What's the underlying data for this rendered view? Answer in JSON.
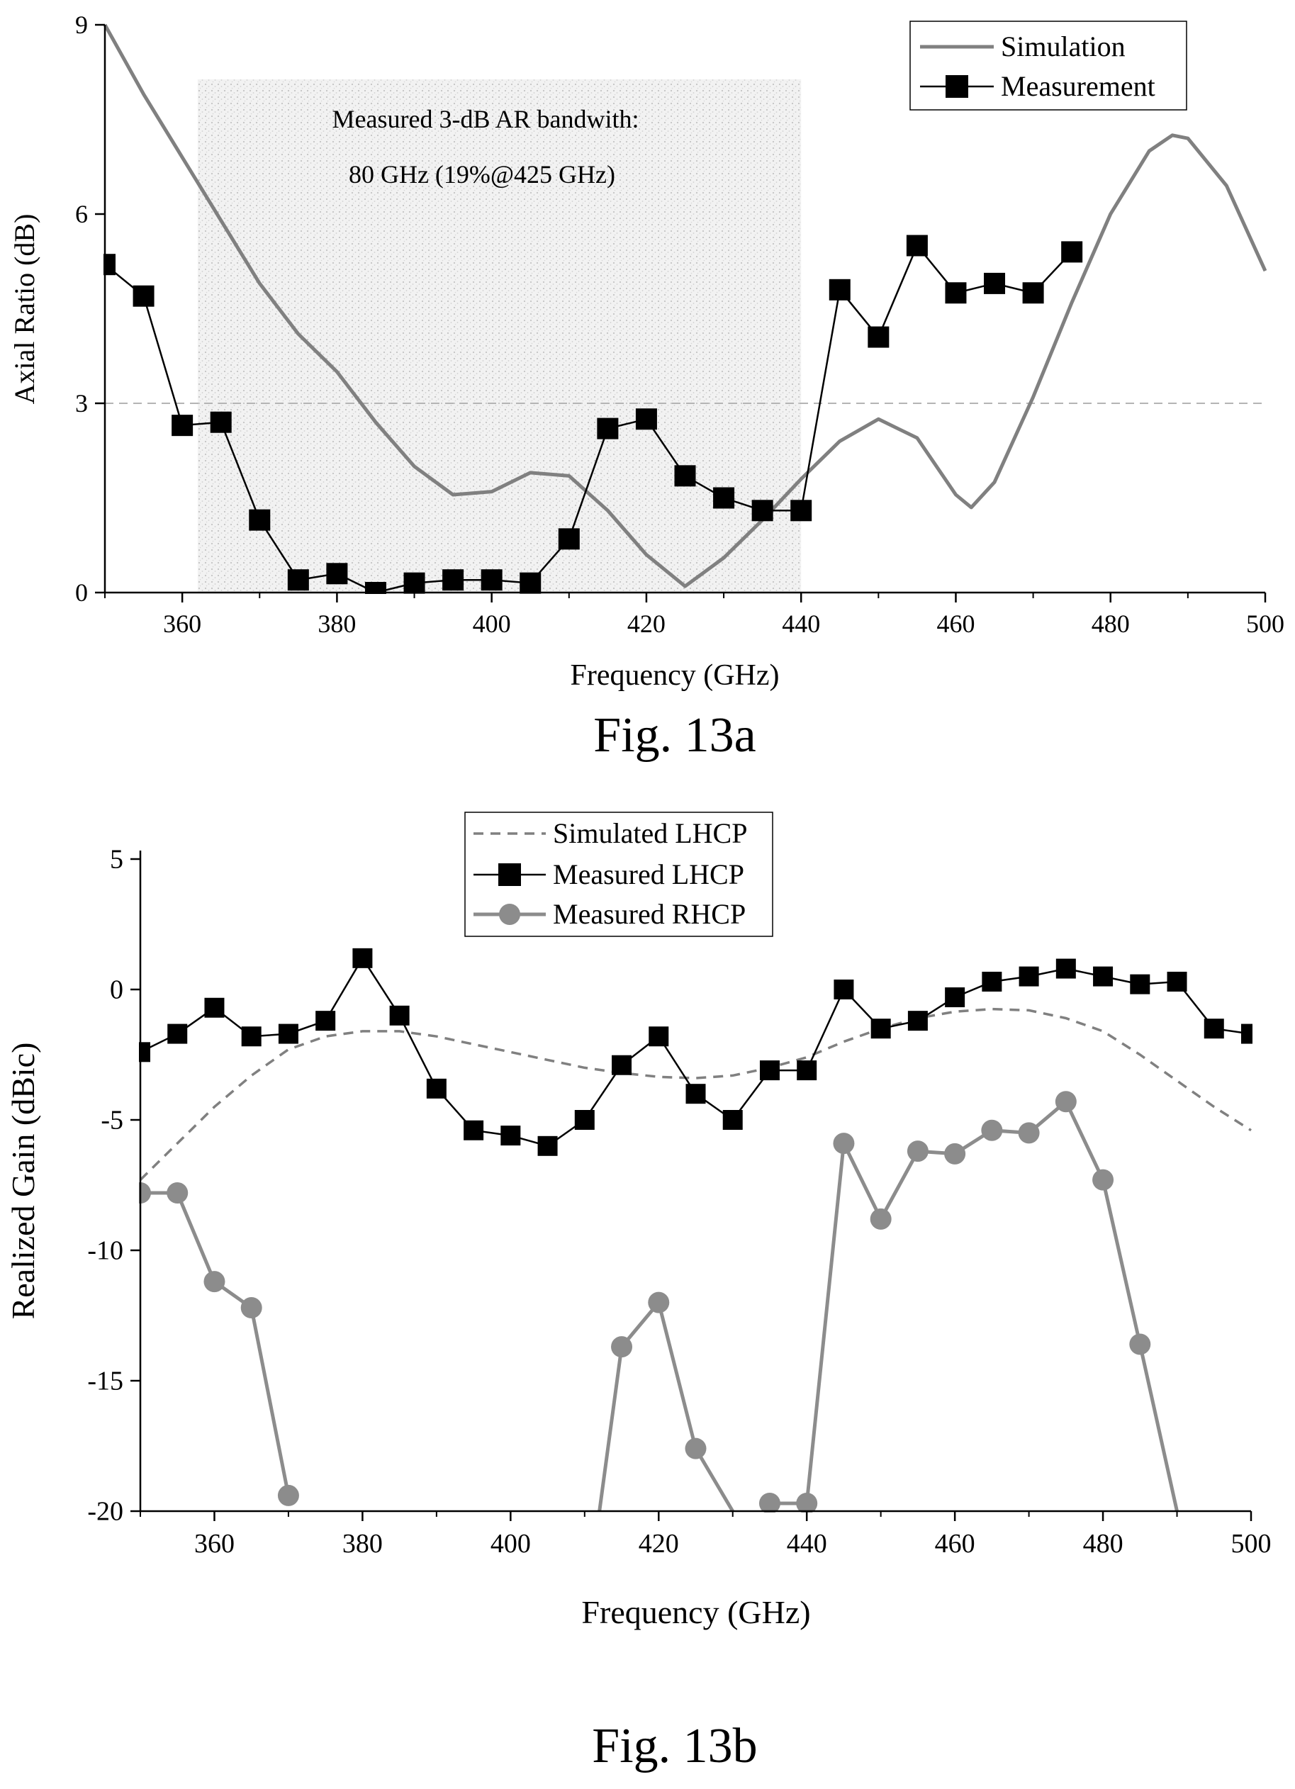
{
  "figures": [
    {
      "caption": "Fig. 13a",
      "annotation_lines": [
        "Measured 3-dB AR bandwith:",
        "80 GHz (19%@425 GHz)"
      ]
    },
    {
      "caption": "Fig. 13b"
    }
  ],
  "colors": {
    "simulation": "#808080",
    "measurement": "#000000",
    "rhcp": "#8c8c8c",
    "reference": "#b4b4b4",
    "shade": "#d2d2d2"
  },
  "chart_data": [
    {
      "type": "line",
      "xlabel": "Frequency (GHz)",
      "ylabel": "Axial Ratio (dB)",
      "xlim": [
        350,
        500
      ],
      "ylim": [
        0,
        9
      ],
      "xticks": [
        360,
        380,
        400,
        420,
        440,
        460,
        480,
        500
      ],
      "yticks": [
        0,
        3,
        6,
        9
      ],
      "legend_position": "top-right",
      "grid": false,
      "reference_line_y": 3,
      "shaded_band_x": [
        362,
        440
      ],
      "series": [
        {
          "name": "Simulation",
          "style": "solid-line",
          "x": [
            350,
            355,
            360,
            365,
            370,
            375,
            380,
            385,
            390,
            395,
            400,
            405,
            410,
            415,
            420,
            425,
            430,
            435,
            440,
            445,
            450,
            455,
            460,
            462,
            465,
            470,
            475,
            480,
            485,
            488,
            490,
            495,
            500
          ],
          "values": [
            9.0,
            7.9,
            6.9,
            5.9,
            4.9,
            4.1,
            3.5,
            2.7,
            2.0,
            1.55,
            1.6,
            1.9,
            1.85,
            1.3,
            0.6,
            0.1,
            0.55,
            1.15,
            1.8,
            2.4,
            2.75,
            2.45,
            1.55,
            1.35,
            1.75,
            3.1,
            4.6,
            6.0,
            7.0,
            7.25,
            7.2,
            6.45,
            5.1
          ]
        },
        {
          "name": "Measurement",
          "style": "line-square-marker",
          "x": [
            350,
            355,
            360,
            365,
            370,
            375,
            380,
            385,
            390,
            395,
            400,
            405,
            410,
            415,
            420,
            425,
            430,
            435,
            440,
            445,
            450,
            455,
            460,
            465,
            470,
            475
          ],
          "values": [
            5.2,
            4.7,
            2.65,
            2.7,
            1.15,
            0.2,
            0.3,
            0.0,
            0.15,
            0.2,
            0.2,
            0.15,
            0.85,
            2.6,
            2.75,
            1.85,
            1.5,
            1.3,
            1.3,
            4.8,
            4.05,
            5.5,
            4.75,
            4.9,
            4.75,
            5.4
          ]
        }
      ]
    },
    {
      "type": "line",
      "xlabel": "Frequency (GHz)",
      "ylabel": "Realized Gain (dBic)",
      "xlim": [
        350,
        500
      ],
      "ylim": [
        -20,
        5
      ],
      "xticks": [
        360,
        380,
        400,
        420,
        440,
        460,
        480,
        500
      ],
      "yticks": [
        -20,
        -15,
        -10,
        -5,
        0,
        5
      ],
      "legend_position": "top-center",
      "grid": false,
      "series": [
        {
          "name": "Simulated LHCP",
          "style": "dashed-line",
          "x": [
            350,
            355,
            360,
            365,
            370,
            375,
            380,
            385,
            390,
            395,
            400,
            405,
            410,
            415,
            420,
            425,
            430,
            435,
            440,
            445,
            450,
            455,
            460,
            465,
            470,
            475,
            480,
            485,
            490,
            495,
            500
          ],
          "values": [
            -7.3,
            -5.9,
            -4.5,
            -3.3,
            -2.3,
            -1.8,
            -1.6,
            -1.6,
            -1.8,
            -2.1,
            -2.4,
            -2.7,
            -3.0,
            -3.2,
            -3.35,
            -3.4,
            -3.3,
            -3.0,
            -2.6,
            -2.0,
            -1.5,
            -1.1,
            -0.85,
            -0.75,
            -0.8,
            -1.1,
            -1.6,
            -2.5,
            -3.5,
            -4.5,
            -5.4
          ]
        },
        {
          "name": "Measured LHCP",
          "style": "line-square-marker",
          "x": [
            350,
            355,
            360,
            365,
            370,
            375,
            380,
            385,
            390,
            395,
            400,
            405,
            410,
            415,
            420,
            425,
            430,
            435,
            440,
            445,
            450,
            455,
            460,
            465,
            470,
            475,
            480,
            485,
            490,
            495,
            500
          ],
          "values": [
            -2.4,
            -1.7,
            -0.7,
            -1.8,
            -1.7,
            -1.2,
            1.2,
            -1.0,
            -3.8,
            -5.4,
            -5.6,
            -6.0,
            -5.0,
            -2.9,
            -1.8,
            -4.0,
            -5.0,
            -3.1,
            -3.1,
            0.0,
            -1.5,
            -1.2,
            -0.3,
            0.3,
            0.5,
            0.8,
            0.5,
            0.2,
            0.3,
            -1.5,
            -1.7
          ]
        },
        {
          "name": "Measured RHCP",
          "style": "line-circle-marker",
          "x": [
            350,
            355,
            360,
            365,
            370,
            412,
            415,
            420,
            425,
            430,
            435,
            440,
            445,
            450,
            455,
            460,
            465,
            470,
            475,
            480,
            485,
            490
          ],
          "values": [
            -7.8,
            -7.8,
            -11.2,
            -12.2,
            -19.4,
            -20.0,
            -13.7,
            -12.0,
            -17.6,
            -20.0,
            -19.7,
            -19.7,
            -5.9,
            -8.8,
            -6.2,
            -6.3,
            -5.4,
            -5.5,
            -4.3,
            -7.3,
            -13.6,
            -20.0
          ],
          "markers": [
            true,
            true,
            true,
            true,
            true,
            false,
            true,
            true,
            true,
            false,
            true,
            true,
            true,
            true,
            true,
            true,
            true,
            true,
            true,
            true,
            true,
            false
          ]
        }
      ]
    }
  ]
}
